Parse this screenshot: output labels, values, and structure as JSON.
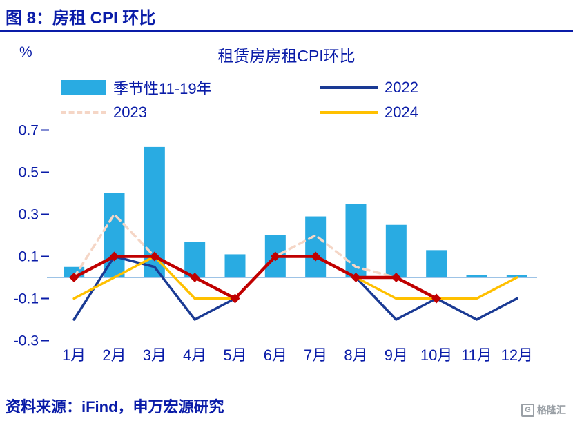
{
  "page": {
    "figure_title": "图 8：房租 CPI 环比",
    "source_text": "资料来源：iFind，申万宏源研究",
    "accent_color": "#0A1CA8",
    "watermark": {
      "icon_letter": "G",
      "text": "格隆汇"
    }
  },
  "chart_data": {
    "type": "bar+line combo",
    "title": "租赁房房租CPI环比",
    "unit_label": "%",
    "categories": [
      "1月",
      "2月",
      "3月",
      "4月",
      "5月",
      "6月",
      "7月",
      "8月",
      "9月",
      "10月",
      "11月",
      "12月"
    ],
    "ylim": [
      -0.3,
      0.7
    ],
    "yticks": [
      0.7,
      0.5,
      0.3,
      0.1,
      -0.1,
      -0.3
    ],
    "grid": false,
    "legend_position": "top",
    "zero_line_color": "#9DC3E6",
    "series": [
      {
        "name": "季节性11-19年",
        "type": "bar",
        "color": "#29ABE2",
        "values": [
          0.05,
          0.4,
          0.62,
          0.17,
          0.11,
          0.2,
          0.29,
          0.35,
          0.25,
          0.13,
          0.01,
          0.01
        ]
      },
      {
        "name": "2022",
        "type": "line",
        "color": "#1A3A94",
        "values": [
          -0.2,
          0.1,
          0.05,
          -0.2,
          -0.1,
          0.1,
          0.1,
          0.0,
          -0.2,
          -0.1,
          -0.2,
          -0.1
        ]
      },
      {
        "name": "2023",
        "type": "line",
        "dash": true,
        "color": "#F5D6C6",
        "values": [
          0.0,
          0.3,
          0.1,
          0.0,
          -0.1,
          0.1,
          0.2,
          0.05,
          0.0,
          -0.1,
          -0.1,
          0.0
        ]
      },
      {
        "name": "2024",
        "type": "line",
        "color": "#FFC000",
        "values": [
          -0.1,
          0.0,
          0.1,
          -0.1,
          -0.1,
          0.1,
          0.1,
          0.0,
          -0.1,
          -0.1,
          -0.1,
          0.0
        ]
      },
      {
        "name": "",
        "type": "line",
        "marker": "diamond",
        "in_legend": false,
        "color": "#C00000",
        "values": [
          0.0,
          0.1,
          0.1,
          0.0,
          -0.1,
          0.1,
          0.1,
          0.0,
          0.0,
          -0.1,
          null,
          null
        ]
      }
    ]
  }
}
